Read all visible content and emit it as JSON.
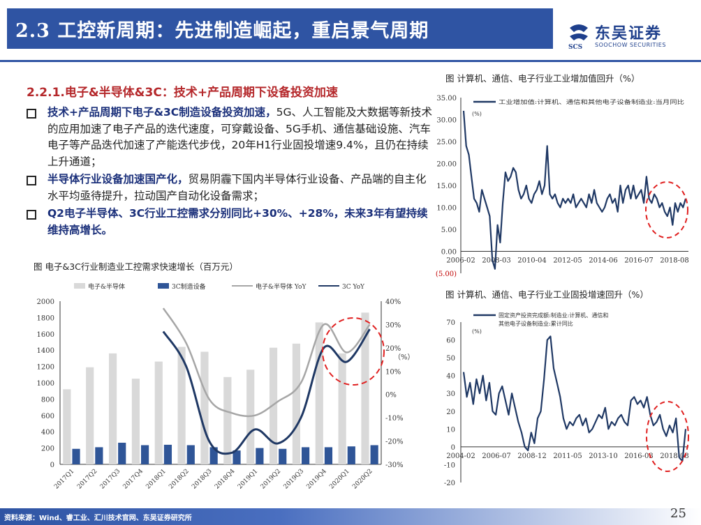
{
  "header": {
    "title": "2.3 工控新周期：先进制造崛起，重启景气周期",
    "logo_cn": "东吴证券",
    "logo_en": "SOOCHOW SECURITIES",
    "logo_mark": "SCS"
  },
  "section": {
    "heading": "2.2.1.电子&半导体&3C：技术+产品周期下设备投资加速"
  },
  "bullets": [
    {
      "bold": "技术+产品周期下电子&3C制造设备投资加速，",
      "text": "5G、人工智能及大数据等新技术的应用加速了电子产品的迭代速度，可穿戴设备、5G手机、通信基础设施、汽车电子等产品迭代加速了产能迭代步伐，20年H1行业固投增速9.4%，且仍在持续上升通道；"
    },
    {
      "bold": "半导体行业设备加速国产化，",
      "text": "贸易阴霾下国内半导体行业设备、产品端的自主化水平均亟待提升，拉动国产自动化设备需求；"
    },
    {
      "bold": "Q2电子半导体、3C行业工控需求分别同比+30%、+28%，未来3年有望持续维持高增长。",
      "text": ""
    }
  ],
  "footer": {
    "source": "资料来源：Wind、睿工业、汇川技术官网、东吴证券研究所",
    "page": "25"
  },
  "chart_data": [
    {
      "type": "bar",
      "title": "图  电子&3C行业制造业工控需求快速增长（百万元）",
      "categories": [
        "2017Q1",
        "2017Q2",
        "2017Q3",
        "2017Q4",
        "2018Q1",
        "2018Q2",
        "2018Q3",
        "2018Q4",
        "2019Q1",
        "2019Q2",
        "2019Q3",
        "2019Q4",
        "2020Q1",
        "2020Q2"
      ],
      "series": [
        {
          "name": "电子&半导体",
          "axis": "left",
          "color": "#d9d9d9",
          "values": [
            920,
            1190,
            1360,
            1050,
            1260,
            1440,
            1380,
            1070,
            1160,
            1430,
            1480,
            1740,
            1360,
            1860
          ]
        },
        {
          "name": "3C制造设备",
          "axis": "left",
          "color": "#2f5597",
          "values": [
            190,
            210,
            265,
            235,
            240,
            235,
            210,
            170,
            200,
            190,
            210,
            210,
            220,
            235
          ]
        },
        {
          "name": "电子&半导体 YoY",
          "axis": "right",
          "type": "line",
          "color": "#a6a6a6",
          "values": [
            null,
            null,
            null,
            null,
            37,
            22,
            -2,
            -8,
            -9,
            -3,
            5,
            30,
            18,
            30
          ]
        },
        {
          "name": "3C YoY",
          "axis": "right",
          "type": "line",
          "color": "#1f3864",
          "values": [
            null,
            null,
            null,
            null,
            27,
            12,
            -20,
            -25,
            -15,
            -21,
            -10,
            20,
            14,
            28
          ]
        }
      ],
      "ylim": [
        0,
        2000
      ],
      "y2lim": [
        -30,
        40
      ],
      "y2unit": "（%）",
      "yticks": [
        "2000",
        "1800",
        "1600",
        "1400",
        "1200",
        "1000",
        "800",
        "600",
        "400",
        "200",
        "0"
      ],
      "y2ticks": [
        "40%",
        "30%",
        "20%",
        "10%",
        "0%",
        "-10%",
        "-20%",
        "-30%"
      ]
    },
    {
      "type": "line",
      "title": "图  计算机、通信、电子行业工业增加值回升（%）",
      "series": [
        {
          "name": "工业增加值:计算机、通信和其他电子设备制造业:当月同比",
          "unit": "(%)",
          "color": "#1f3864"
        }
      ],
      "ylim": [
        -5,
        35
      ],
      "yticks": [
        "35.00",
        "30.00",
        "25.00",
        "20.00",
        "15.00",
        "10.00",
        "5.00",
        "0.00",
        "(5.00)"
      ],
      "xticks": [
        "2006-02",
        "2008-03",
        "2010-04",
        "2012-05",
        "2014-06",
        "2016-07",
        "2018-08"
      ],
      "values": [
        32,
        24,
        22,
        17,
        12,
        11,
        9,
        14,
        12,
        10,
        8,
        -2,
        -4,
        6,
        2,
        11,
        18,
        16,
        17,
        19,
        18,
        14,
        12,
        13,
        15,
        12,
        11,
        13,
        14,
        16,
        13,
        15,
        24,
        13,
        12,
        13,
        11,
        10,
        12,
        11,
        12,
        11,
        13,
        10,
        11,
        12,
        11,
        10,
        13,
        11,
        14,
        11,
        10,
        9,
        10,
        12,
        13,
        11,
        12,
        9,
        15,
        11,
        14,
        15,
        12,
        15,
        12,
        13,
        14,
        11,
        17,
        12,
        11,
        13,
        12,
        10,
        11,
        9,
        8,
        10,
        6,
        11,
        9,
        11,
        10,
        12
      ]
    },
    {
      "type": "line",
      "title": "图  计算机、通信、电子行业工业固投增速回升（%）",
      "series": [
        {
          "name": "固定资产投资完成额:制造业:计算机、通信和其他电子设备制造业:累计同比",
          "unit": "(%)",
          "color": "#1f3864"
        }
      ],
      "ylim": [
        -20,
        70
      ],
      "yticks": [
        "70",
        "60",
        "50",
        "40",
        "30",
        "20",
        "10",
        "0",
        "-10",
        "-20"
      ],
      "xticks": [
        "2004-02",
        "2006-07",
        "2008-12",
        "2011-05",
        "2013-10",
        "2016-03",
        "2018-08"
      ],
      "values": [
        42,
        28,
        36,
        24,
        38,
        30,
        40,
        26,
        36,
        20,
        18,
        30,
        34,
        26,
        18,
        30,
        22,
        14,
        8,
        0,
        -2,
        8,
        2,
        16,
        20,
        38,
        60,
        62,
        44,
        36,
        28,
        16,
        10,
        14,
        12,
        16,
        18,
        12,
        16,
        8,
        10,
        14,
        18,
        16,
        22,
        10,
        14,
        12,
        16,
        18,
        14,
        12,
        26,
        28,
        24,
        26,
        22,
        28,
        18,
        12,
        14,
        18,
        10,
        6,
        12,
        8,
        16,
        -6,
        -8,
        10
      ]
    }
  ]
}
